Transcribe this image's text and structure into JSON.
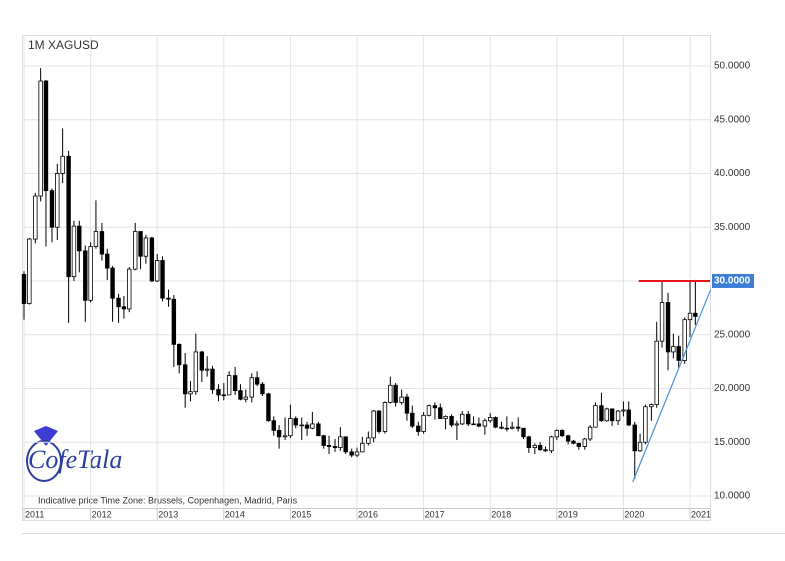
{
  "chart_data": {
    "type": "candlestick",
    "title": "1M    XAGUSD",
    "footnote": "Indicative price    Time Zone: Brussels, Copenhagen, Madrid, Paris",
    "logo": "CofeTala",
    "up_color": "#ffffff",
    "down_color": "#000000",
    "grid": true,
    "xlim": [
      2010.97,
      2021.3
    ],
    "xticks": [
      2011,
      2012,
      2013,
      2014,
      2015,
      2016,
      2017,
      2018,
      2019,
      2020,
      2021
    ],
    "ylim": [
      8.88,
      52.88
    ],
    "yticks": [
      {
        "value": 10,
        "label": "10.0000"
      },
      {
        "value": 15,
        "label": "15.0000"
      },
      {
        "value": 20,
        "label": "20.0000"
      },
      {
        "value": 25,
        "label": "25.0000"
      },
      {
        "value": 30,
        "label": "30.0000"
      },
      {
        "value": 35,
        "label": "35.0000"
      },
      {
        "value": 40,
        "label": "40.0000"
      },
      {
        "value": 45,
        "label": "45.0000"
      },
      {
        "value": 50,
        "label": "50.0000"
      }
    ],
    "x": [
      2011.0,
      2011.08,
      2011.17,
      2011.25,
      2011.33,
      2011.42,
      2011.5,
      2011.58,
      2011.67,
      2011.75,
      2011.83,
      2011.92,
      2012.0,
      2012.08,
      2012.17,
      2012.25,
      2012.33,
      2012.42,
      2012.5,
      2012.58,
      2012.67,
      2012.75,
      2012.83,
      2012.92,
      2013.0,
      2013.08,
      2013.17,
      2013.25,
      2013.33,
      2013.42,
      2013.5,
      2013.58,
      2013.67,
      2013.75,
      2013.83,
      2013.92,
      2014.0,
      2014.08,
      2014.17,
      2014.25,
      2014.33,
      2014.42,
      2014.5,
      2014.58,
      2014.67,
      2014.75,
      2014.83,
      2014.92,
      2015.0,
      2015.08,
      2015.17,
      2015.25,
      2015.33,
      2015.42,
      2015.5,
      2015.58,
      2015.67,
      2015.75,
      2015.83,
      2015.92,
      2016.0,
      2016.08,
      2016.17,
      2016.25,
      2016.33,
      2016.42,
      2016.5,
      2016.58,
      2016.67,
      2016.75,
      2016.83,
      2016.92,
      2017.0,
      2017.08,
      2017.17,
      2017.25,
      2017.33,
      2017.42,
      2017.5,
      2017.58,
      2017.67,
      2017.75,
      2017.83,
      2017.92,
      2018.0,
      2018.08,
      2018.17,
      2018.25,
      2018.33,
      2018.42,
      2018.5,
      2018.58,
      2018.67,
      2018.75,
      2018.83,
      2018.92,
      2019.0,
      2019.08,
      2019.17,
      2019.25,
      2019.33,
      2019.42,
      2019.5,
      2019.58,
      2019.67,
      2019.75,
      2019.83,
      2019.92,
      2020.0,
      2020.08,
      2020.17,
      2020.25,
      2020.33,
      2020.42,
      2020.5,
      2020.58,
      2020.67,
      2020.75,
      2020.83,
      2020.92,
      2021.0,
      2021.08
    ],
    "open": [
      30.6,
      27.9,
      33.9,
      37.9,
      48.6,
      38.4,
      35.0,
      40.0,
      41.6,
      30.4,
      35.1,
      32.8,
      28.2,
      33.2,
      34.6,
      32.5,
      31.2,
      28.4,
      27.6,
      27.4,
      31.1,
      34.6,
      32.3,
      34.0,
      30.0,
      31.9,
      28.4,
      28.3,
      24.1,
      22.2,
      19.5,
      19.7,
      23.4,
      21.7,
      21.8,
      19.9,
      19.4,
      19.4,
      21.2,
      19.8,
      19.0,
      19.2,
      21.0,
      20.4,
      19.5,
      17.0,
      16.1,
      15.5,
      15.6,
      17.2,
      16.6,
      16.6,
      16.3,
      16.7,
      15.6,
      14.7,
      14.6,
      14.5,
      15.5,
      14.1,
      13.8,
      14.1,
      14.9,
      15.4,
      17.9,
      16.0,
      18.7,
      20.3,
      18.7,
      19.2,
      17.7,
      16.5,
      16.0,
      17.5,
      18.4,
      18.2,
      17.2,
      17.4,
      16.6,
      16.7,
      17.6,
      16.7,
      16.7,
      16.5,
      17.0,
      17.3,
      16.4,
      16.3,
      16.3,
      16.4,
      16.3,
      15.5,
      14.5,
      14.7,
      14.3,
      14.2,
      15.5,
      16.1,
      15.6,
      15.1,
      14.9,
      14.6,
      15.3,
      16.4,
      18.4,
      17.0,
      18.1,
      17.0,
      17.9,
      18.0,
      16.6,
      14.2,
      15.0,
      18.3,
      18.5,
      24.4,
      28.0,
      23.4,
      23.9,
      22.6,
      26.4,
      27.0
    ],
    "high": [
      30.9,
      34.0,
      38.2,
      49.8,
      48.7,
      38.6,
      40.9,
      44.2,
      42.1,
      35.6,
      35.6,
      33.3,
      33.6,
      37.5,
      35.4,
      33.0,
      31.4,
      28.8,
      28.6,
      31.3,
      35.4,
      34.6,
      34.3,
      34.1,
      32.5,
      32.3,
      29.2,
      28.7,
      24.2,
      23.3,
      20.7,
      25.1,
      23.5,
      23.0,
      22.1,
      20.4,
      20.5,
      21.6,
      22.0,
      20.4,
      19.9,
      21.4,
      21.6,
      20.6,
      19.6,
      17.4,
      16.6,
      17.3,
      18.5,
      17.4,
      17.3,
      16.9,
      17.8,
      16.9,
      15.7,
      15.6,
      15.3,
      16.4,
      15.5,
      14.4,
      14.5,
      15.5,
      16.0,
      18.0,
      18.0,
      18.8,
      21.1,
      20.5,
      19.9,
      19.5,
      18.4,
      16.9,
      17.8,
      18.5,
      18.7,
      18.6,
      17.5,
      17.6,
      17.0,
      17.9,
      17.9,
      17.4,
      17.3,
      17.2,
      17.7,
      17.4,
      16.9,
      17.4,
      16.9,
      17.3,
      16.3,
      15.6,
      14.9,
      15.0,
      14.6,
      15.6,
      16.2,
      16.2,
      15.7,
      15.2,
      14.9,
      15.4,
      16.6,
      18.7,
      19.6,
      18.2,
      18.1,
      18.0,
      18.8,
      18.8,
      16.9,
      15.8,
      18.5,
      18.6,
      26.2,
      29.9,
      28.9,
      25.1,
      24.9,
      26.6,
      30.0,
      30.1
    ],
    "low": [
      26.4,
      27.8,
      33.5,
      37.4,
      33.2,
      33.6,
      33.8,
      39.1,
      26.1,
      30.0,
      30.8,
      26.2,
      28.0,
      33.0,
      31.9,
      30.1,
      26.2,
      26.1,
      26.5,
      27.1,
      31.0,
      31.1,
      31.6,
      29.9,
      29.9,
      28.1,
      27.6,
      22.0,
      21.4,
      18.2,
      18.8,
      19.4,
      20.6,
      21.1,
      19.5,
      18.8,
      18.9,
      19.4,
      19.4,
      18.9,
      18.7,
      18.7,
      20.2,
      19.3,
      16.9,
      15.6,
      14.4,
      15.2,
      15.4,
      16.3,
      15.2,
      15.6,
      16.2,
      15.6,
      14.4,
      13.9,
      14.1,
      14.2,
      13.9,
      13.6,
      13.6,
      14.1,
      14.7,
      15.0,
      15.8,
      15.8,
      18.6,
      18.3,
      18.5,
      17.0,
      16.3,
      15.6,
      15.8,
      17.4,
      17.1,
      17.2,
      16.2,
      16.4,
      15.2,
      16.6,
      16.5,
      16.6,
      16.4,
      15.7,
      16.8,
      16.3,
      16.2,
      16.0,
      16.2,
      16.0,
      15.3,
      14.0,
      13.9,
      14.2,
      14.1,
      14.0,
      15.2,
      15.5,
      14.8,
      14.8,
      14.3,
      14.3,
      15.1,
      16.4,
      16.9,
      16.9,
      16.5,
      16.6,
      17.4,
      16.5,
      11.6,
      14.1,
      14.8,
      17.0,
      18.2,
      23.8,
      21.7,
      22.8,
      21.9,
      22.3,
      24.8,
      25.9
    ],
    "close": [
      27.9,
      33.9,
      37.9,
      48.6,
      38.4,
      35.0,
      40.0,
      41.6,
      30.4,
      35.1,
      32.8,
      28.2,
      33.2,
      34.6,
      32.5,
      31.2,
      28.4,
      27.6,
      27.4,
      31.1,
      34.6,
      32.3,
      34.0,
      30.0,
      31.9,
      28.4,
      28.3,
      24.1,
      22.2,
      19.5,
      19.7,
      23.4,
      21.7,
      21.8,
      19.9,
      19.4,
      19.4,
      21.2,
      19.8,
      19.0,
      19.2,
      21.0,
      20.4,
      19.5,
      17.0,
      16.1,
      15.5,
      15.6,
      17.2,
      16.6,
      16.6,
      16.3,
      16.7,
      15.6,
      14.7,
      14.6,
      14.5,
      15.5,
      14.1,
      13.8,
      14.1,
      14.9,
      15.4,
      17.9,
      16.0,
      18.7,
      20.3,
      18.7,
      19.2,
      17.7,
      16.5,
      16.0,
      17.5,
      18.4,
      18.2,
      17.2,
      17.4,
      16.6,
      16.7,
      17.6,
      16.7,
      16.7,
      16.5,
      17.0,
      17.3,
      16.4,
      16.3,
      16.3,
      16.4,
      16.3,
      15.5,
      14.5,
      14.7,
      14.3,
      14.2,
      15.5,
      16.1,
      15.6,
      15.1,
      14.9,
      14.6,
      15.3,
      16.4,
      18.4,
      17.0,
      18.1,
      17.0,
      17.9,
      18.0,
      16.6,
      14.2,
      15.0,
      18.3,
      18.5,
      24.4,
      28.0,
      23.4,
      23.9,
      22.6,
      26.4,
      27.0,
      26.7
    ],
    "resistance": {
      "value": 30,
      "label": "30.0000",
      "x_start": 2020.23,
      "color": "#e8141b"
    },
    "trendline": {
      "points": [
        [
          2020.14,
          11.3
        ],
        [
          2021.31,
          29.2
        ]
      ],
      "color": "#4a90d9"
    }
  }
}
